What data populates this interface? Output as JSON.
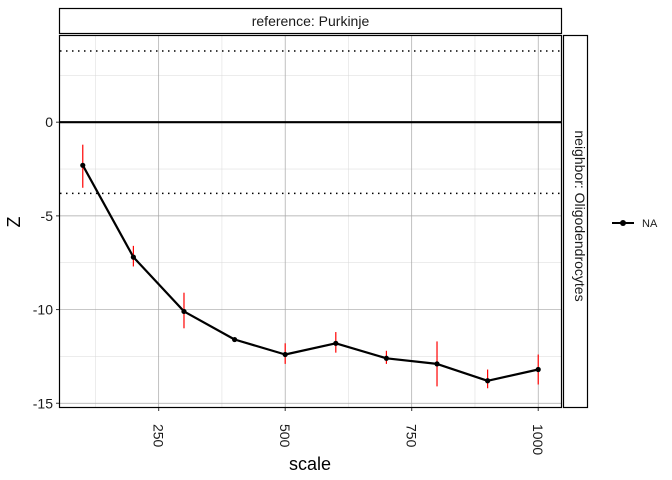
{
  "chart_data": {
    "type": "line",
    "x": [
      100,
      200,
      300,
      400,
      500,
      600,
      700,
      800,
      900,
      1000
    ],
    "series": [
      {
        "name": "NA",
        "values": [
          -2.3,
          -7.2,
          -10.1,
          -11.6,
          -12.4,
          -11.8,
          -12.6,
          -12.9,
          -13.8,
          -13.2
        ],
        "error_low": [
          -3.5,
          -7.7,
          -11.0,
          -11.6,
          -12.9,
          -12.3,
          -12.9,
          -14.1,
          -14.2,
          -14.0
        ],
        "error_high": [
          -1.2,
          -6.6,
          -9.1,
          -11.5,
          -11.8,
          -11.2,
          -12.2,
          -11.7,
          -13.2,
          -12.4
        ],
        "line_color": "#000000",
        "error_color": "#ff0000"
      }
    ],
    "xlabel": "scale",
    "ylabel": "Z",
    "xlim": [
      55,
      1045
    ],
    "ylim": [
      -15.2,
      4.6
    ],
    "x_ticks": [
      250,
      500,
      750,
      1000
    ],
    "x_tick_labels": [
      "250",
      "500",
      "750",
      "1000"
    ],
    "y_ticks": [
      0,
      -5,
      -10,
      -15
    ],
    "y_tick_labels": [
      "0",
      "-5",
      "-10",
      "-15"
    ],
    "hlines": [
      {
        "y": 0,
        "style": "solid"
      },
      {
        "y": 3.8,
        "style": "dotted"
      },
      {
        "y": -3.8,
        "style": "dotted"
      }
    ],
    "grid": true,
    "facet_top": "reference: Purkinje",
    "facet_right": "neighbor: Oligodendrocytes",
    "legend": {
      "position": "right",
      "entries": [
        "NA"
      ]
    }
  }
}
